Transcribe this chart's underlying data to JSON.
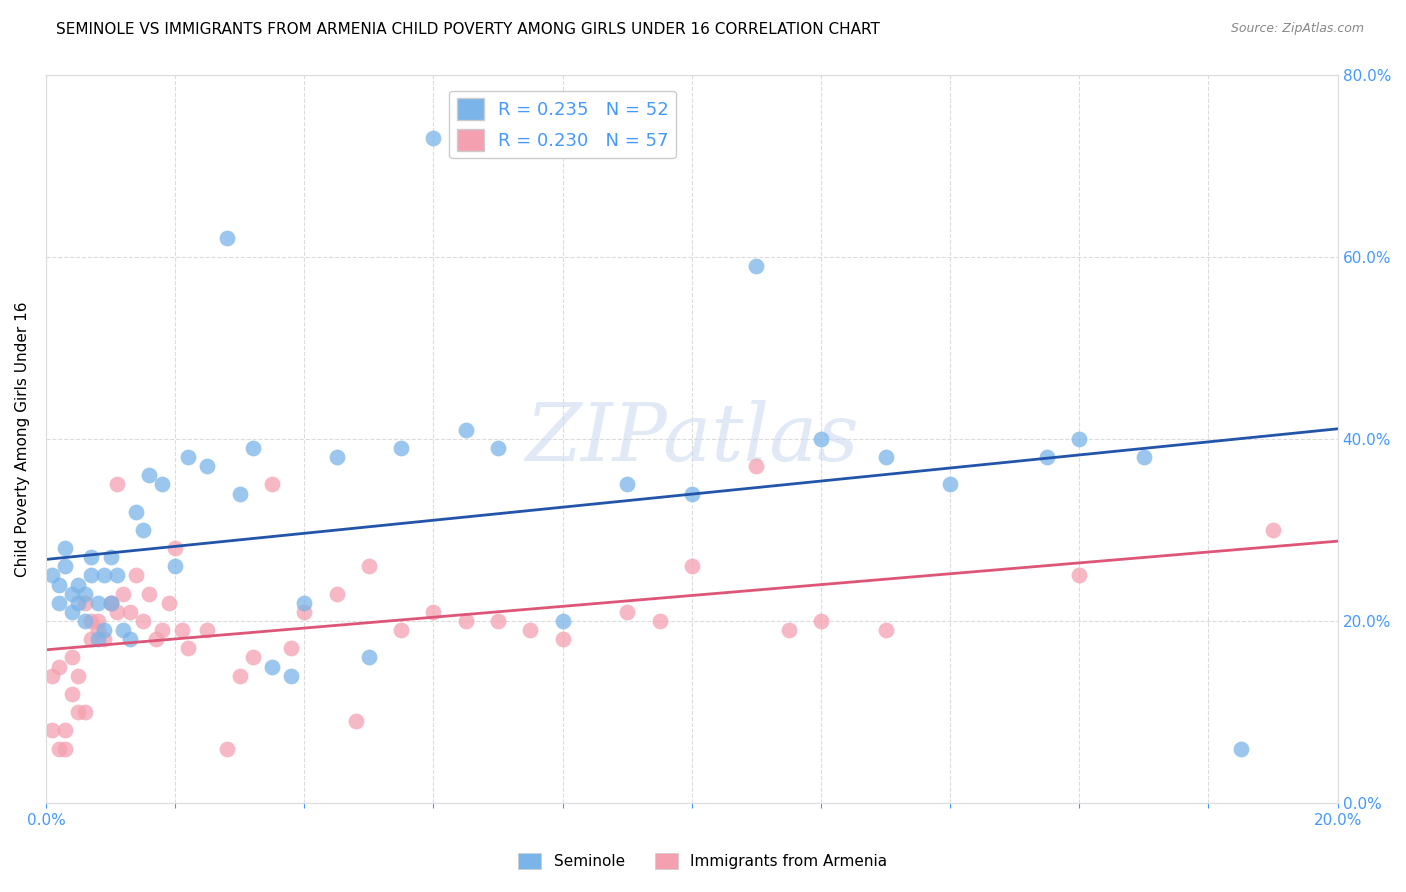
{
  "title": "SEMINOLE VS IMMIGRANTS FROM ARMENIA CHILD POVERTY AMONG GIRLS UNDER 16 CORRELATION CHART",
  "source": "Source: ZipAtlas.com",
  "ylabel": "Child Poverty Among Girls Under 16",
  "xlim": [
    0.0,
    0.2
  ],
  "ylim": [
    0.0,
    0.8
  ],
  "yticks": [
    0.0,
    0.2,
    0.4,
    0.6,
    0.8
  ],
  "background_color": "#ffffff",
  "watermark_text": "ZIPatlas",
  "seminole_color": "#7ab4e8",
  "armenia_color": "#f4a0b0",
  "seminole_line_color": "#2255aa",
  "armenia_line_color": "#dd5577",
  "seminole_R": 0.235,
  "seminole_N": 52,
  "armenia_R": 0.23,
  "armenia_N": 57,
  "seminole_x": [
    0.001,
    0.002,
    0.002,
    0.003,
    0.003,
    0.004,
    0.004,
    0.005,
    0.005,
    0.006,
    0.006,
    0.007,
    0.007,
    0.008,
    0.008,
    0.009,
    0.009,
    0.01,
    0.01,
    0.011,
    0.012,
    0.013,
    0.014,
    0.015,
    0.016,
    0.018,
    0.02,
    0.022,
    0.025,
    0.028,
    0.03,
    0.032,
    0.035,
    0.038,
    0.04,
    0.045,
    0.05,
    0.055,
    0.06,
    0.065,
    0.07,
    0.08,
    0.09,
    0.1,
    0.11,
    0.12,
    0.13,
    0.14,
    0.155,
    0.16,
    0.17,
    0.185
  ],
  "seminole_y": [
    0.25,
    0.22,
    0.24,
    0.26,
    0.28,
    0.23,
    0.21,
    0.24,
    0.22,
    0.2,
    0.23,
    0.25,
    0.27,
    0.22,
    0.18,
    0.25,
    0.19,
    0.27,
    0.22,
    0.25,
    0.19,
    0.18,
    0.32,
    0.3,
    0.36,
    0.35,
    0.26,
    0.38,
    0.37,
    0.62,
    0.34,
    0.39,
    0.15,
    0.14,
    0.22,
    0.38,
    0.16,
    0.39,
    0.73,
    0.41,
    0.39,
    0.2,
    0.35,
    0.34,
    0.59,
    0.4,
    0.38,
    0.35,
    0.38,
    0.4,
    0.38,
    0.06
  ],
  "armenia_x": [
    0.001,
    0.001,
    0.002,
    0.002,
    0.003,
    0.003,
    0.004,
    0.004,
    0.005,
    0.005,
    0.006,
    0.006,
    0.007,
    0.007,
    0.008,
    0.008,
    0.009,
    0.01,
    0.01,
    0.011,
    0.011,
    0.012,
    0.013,
    0.014,
    0.015,
    0.016,
    0.017,
    0.018,
    0.019,
    0.02,
    0.021,
    0.022,
    0.025,
    0.028,
    0.03,
    0.032,
    0.035,
    0.038,
    0.04,
    0.045,
    0.048,
    0.05,
    0.055,
    0.06,
    0.065,
    0.07,
    0.075,
    0.08,
    0.09,
    0.095,
    0.1,
    0.11,
    0.115,
    0.12,
    0.13,
    0.16,
    0.19
  ],
  "armenia_y": [
    0.14,
    0.08,
    0.15,
    0.06,
    0.06,
    0.08,
    0.16,
    0.12,
    0.1,
    0.14,
    0.22,
    0.1,
    0.2,
    0.18,
    0.2,
    0.19,
    0.18,
    0.22,
    0.22,
    0.21,
    0.35,
    0.23,
    0.21,
    0.25,
    0.2,
    0.23,
    0.18,
    0.19,
    0.22,
    0.28,
    0.19,
    0.17,
    0.19,
    0.06,
    0.14,
    0.16,
    0.35,
    0.17,
    0.21,
    0.23,
    0.09,
    0.26,
    0.19,
    0.21,
    0.2,
    0.2,
    0.19,
    0.18,
    0.21,
    0.2,
    0.26,
    0.37,
    0.19,
    0.2,
    0.19,
    0.25,
    0.3
  ],
  "grid_color": "#cccccc",
  "tick_color": "#4499ff",
  "title_fontsize": 11,
  "axis_label_fontsize": 11,
  "tick_fontsize": 11,
  "legend_fontsize": 13
}
